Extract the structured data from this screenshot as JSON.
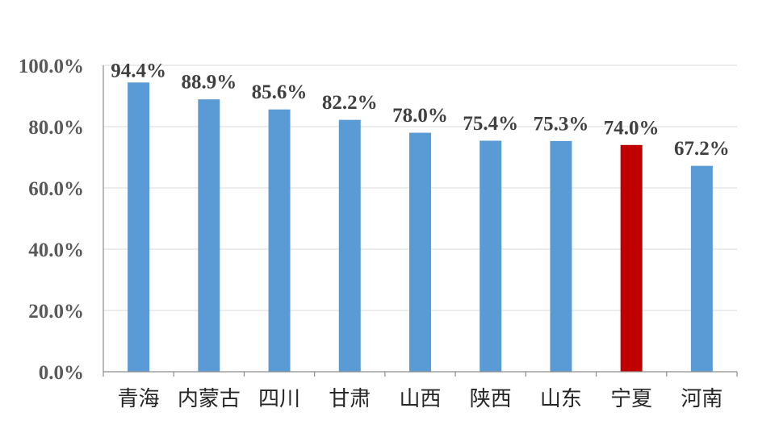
{
  "chart_data": {
    "type": "bar",
    "categories": [
      "青海",
      "内蒙古",
      "四川",
      "甘肃",
      "山西",
      "陕西",
      "山东",
      "宁夏",
      "河南"
    ],
    "values": [
      94.4,
      88.9,
      85.6,
      82.2,
      78.0,
      75.4,
      75.3,
      74.0,
      67.2
    ],
    "data_labels": [
      "94.4%",
      "88.9%",
      "85.6%",
      "82.2%",
      "78.0%",
      "75.4%",
      "75.3%",
      "74.0%",
      "67.2%"
    ],
    "y_ticks": [
      0,
      20,
      40,
      60,
      80,
      100
    ],
    "y_tick_labels": [
      "0.0%",
      "20.0%",
      "40.0%",
      "60.0%",
      "80.0%",
      "100.0%"
    ],
    "ylim": [
      0,
      100
    ],
    "grid": true,
    "bar_colors": [
      "#5b9bd5",
      "#5b9bd5",
      "#5b9bd5",
      "#5b9bd5",
      "#5b9bd5",
      "#5b9bd5",
      "#5b9bd5",
      "#c00000",
      "#5b9bd5"
    ]
  }
}
